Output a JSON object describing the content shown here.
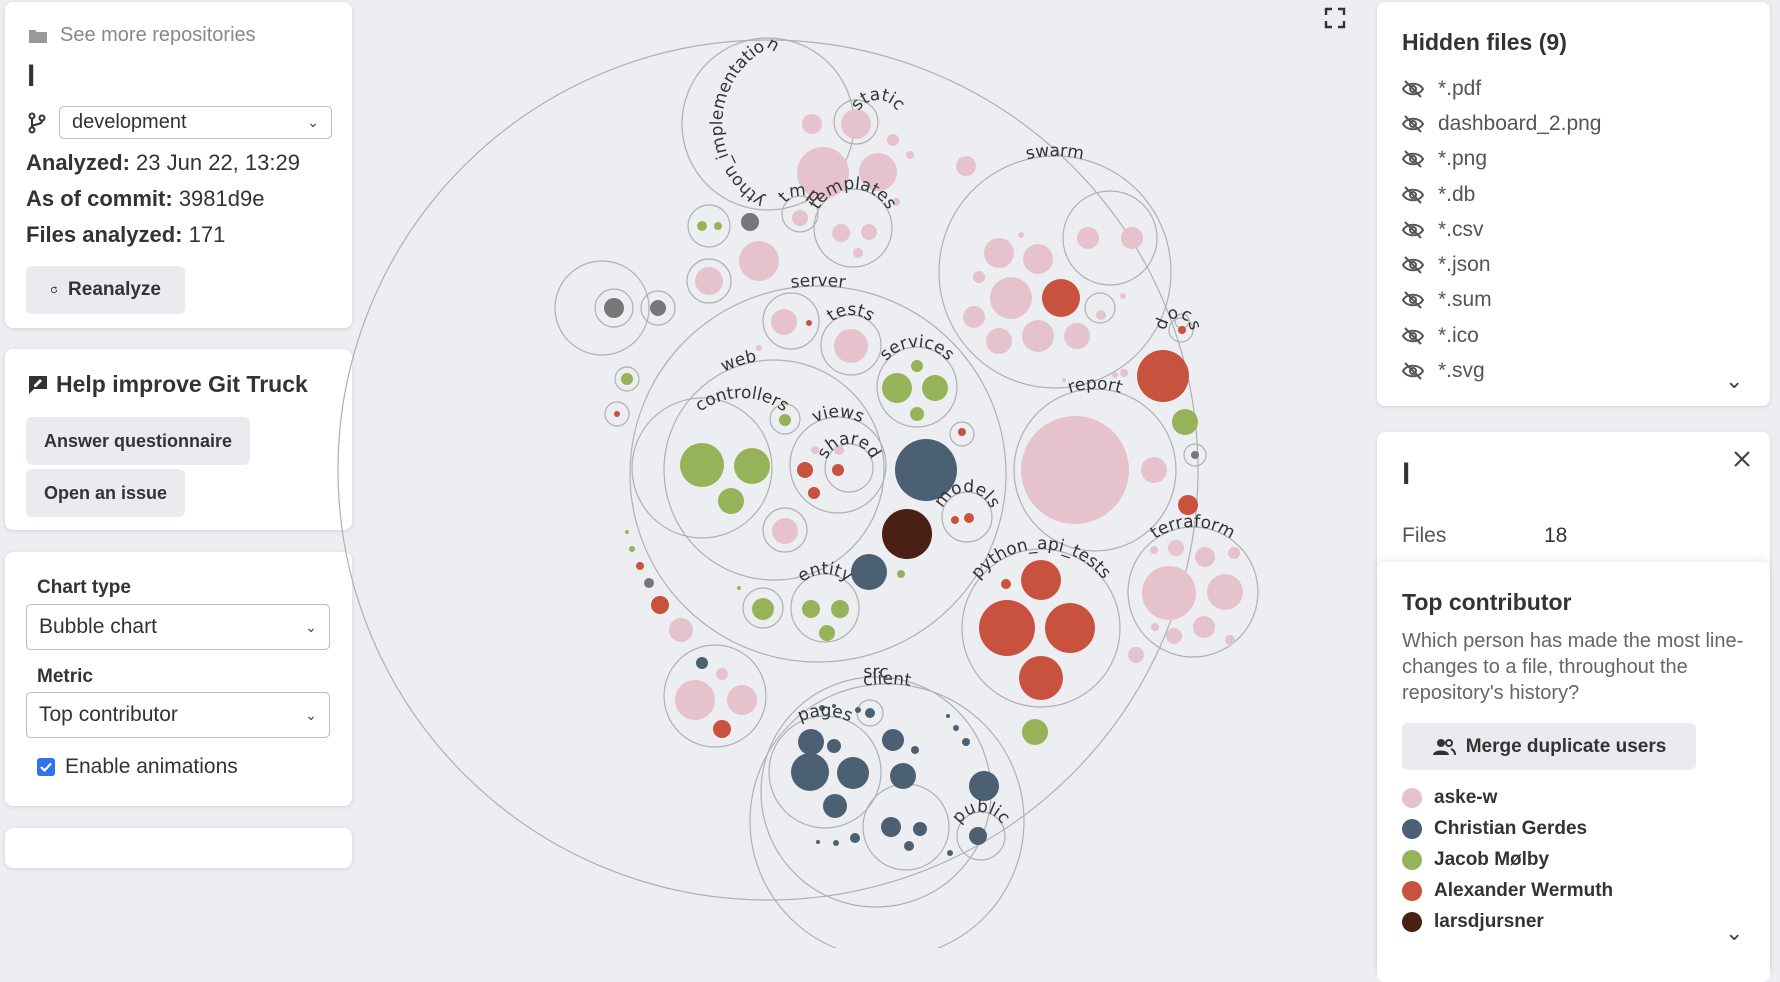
{
  "repo": {
    "see_more": "See more repositories",
    "name": "l",
    "branch": "development",
    "analyzed_label": "Analyzed:",
    "analyzed_value": "23 Jun 22, 13:29",
    "commit_label": "As of commit:",
    "commit_value": "3981d9e",
    "files_label": "Files analyzed:",
    "files_value": "171",
    "reanalyze": "Reanalyze"
  },
  "help": {
    "title": "Help improve Git Truck",
    "questionnaire": "Answer questionnaire",
    "issue": "Open an issue"
  },
  "options": {
    "chart_type_label": "Chart type",
    "chart_type_value": "Bubble chart",
    "metric_label": "Metric",
    "metric_value": "Top contributor",
    "animations_label": "Enable animations",
    "animations_enabled": true
  },
  "hidden_files": {
    "title": "Hidden files (9)",
    "items": [
      "*.pdf",
      "dashboard_2.png",
      "*.png",
      "*.db",
      "*.csv",
      "*.json",
      "*.sum",
      "*.ico",
      "*.svg"
    ]
  },
  "details": {
    "name": "l",
    "files_label": "Files",
    "files_value": "18"
  },
  "legend": {
    "title": "Top contributor",
    "description": "Which person has made the most line-changes to a file, throughout the repository's history?",
    "merge_button": "Merge duplicate users",
    "contributors": [
      {
        "name": "aske-w",
        "color": "#e6c3cc"
      },
      {
        "name": "Christian Gerdes",
        "color": "#4b6072"
      },
      {
        "name": "Jacob Mølby",
        "color": "#97b35a"
      },
      {
        "name": "Alexander Wermuth",
        "color": "#c9523f"
      },
      {
        "name": "larsdjursner",
        "color": "#4a1f14"
      }
    ]
  },
  "colors": {
    "pink": "#e6c3cc",
    "slate": "#4b6072",
    "green": "#97b35a",
    "red": "#c9523f",
    "brown": "#4a1f14",
    "gray": "#777777",
    "accent": "#2f74e8"
  },
  "chart_labels": {
    "python_implementation": "python_implementation",
    "static": "static",
    "tmp": "tmp",
    "templates": "templates",
    "swarm": "swarm",
    "server": "server",
    "tests": "tests",
    "web": "web",
    "services": "services",
    "controllers": "controllers",
    "views": "views",
    "shared": "shared",
    "models": "models",
    "entity": "entity",
    "docs": "docs",
    "report": "report",
    "terraform": "terraform",
    "python_api_tests": "python_api_tests",
    "client": "client",
    "src": "src",
    "pages": "pages",
    "public": "public"
  }
}
